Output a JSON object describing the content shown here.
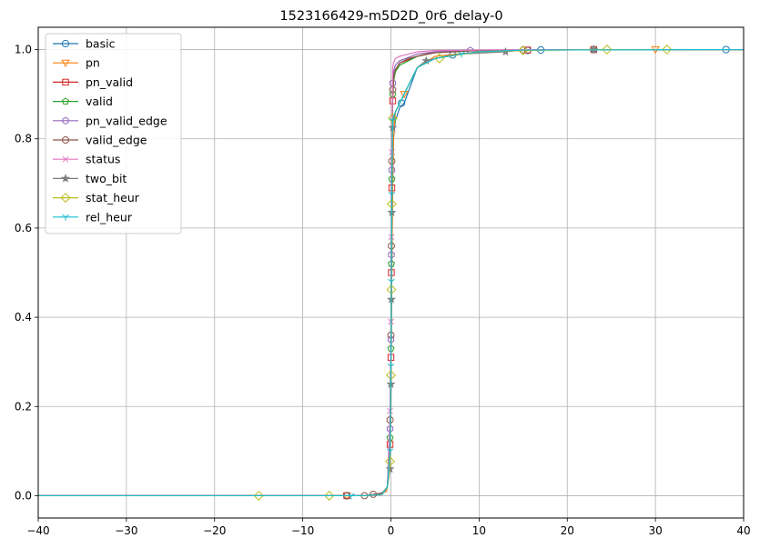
{
  "chart_data": {
    "type": "line",
    "title": "1523166429-m5D2D_0r6_delay-0",
    "xlabel": "",
    "ylabel": "",
    "xlim": [
      -40,
      40
    ],
    "ylim": [
      -0.05,
      1.05
    ],
    "xticks": [
      -40,
      -30,
      -20,
      -10,
      0,
      10,
      20,
      30,
      40
    ],
    "xtick_labels": [
      "−40",
      "−30",
      "−20",
      "−10",
      "0",
      "10",
      "20",
      "30",
      "40"
    ],
    "yticks": [
      0.0,
      0.2,
      0.4,
      0.6,
      0.8,
      1.0
    ],
    "ytick_labels": [
      "0.0",
      "0.2",
      "0.4",
      "0.6",
      "0.8",
      "1.0"
    ],
    "grid": true,
    "legend_position": "upper-left",
    "series": [
      {
        "name": "basic",
        "color": "#1f77b4",
        "marker": "circle",
        "x": [
          -40,
          -5,
          -3,
          -1.5,
          -0.5,
          -0.2,
          0,
          0.1,
          0.2,
          0.3,
          0.5,
          1,
          1.5,
          3,
          5,
          7,
          10,
          15,
          17,
          23,
          38,
          40
        ],
        "y": [
          0,
          0,
          0,
          0.003,
          0.01,
          0.05,
          0.2,
          0.5,
          0.7,
          0.8,
          0.84,
          0.87,
          0.88,
          0.96,
          0.98,
          0.988,
          0.995,
          0.998,
          0.999,
          1.0,
          1.0,
          1.0
        ],
        "markers_x": [
          -5,
          1.2,
          7,
          15.5,
          17,
          23,
          38
        ],
        "markers_y": [
          0,
          0.88,
          0.988,
          0.998,
          0.999,
          1.0,
          1.0
        ]
      },
      {
        "name": "pn",
        "color": "#ff7f0e",
        "marker": "triangle-down",
        "x": [
          -40,
          -5,
          -3,
          -1.5,
          -0.5,
          -0.2,
          0,
          0.1,
          0.2,
          0.3,
          0.5,
          1,
          1.5,
          3,
          5,
          10,
          15,
          30,
          40
        ],
        "y": [
          0,
          0,
          0,
          0.003,
          0.01,
          0.05,
          0.2,
          0.5,
          0.7,
          0.8,
          0.86,
          0.88,
          0.9,
          0.96,
          0.985,
          0.995,
          0.999,
          1.0,
          1.0
        ],
        "markers_x": [
          -5,
          1.5,
          30
        ],
        "markers_y": [
          0,
          0.9,
          1.0
        ]
      },
      {
        "name": "pn_valid",
        "color": "#d62728",
        "marker": "square",
        "x": [
          -40,
          -5,
          -3,
          -1,
          -0.4,
          -0.1,
          0,
          0.05,
          0.1,
          0.2,
          0.3,
          0.5,
          1,
          3,
          5,
          10,
          15,
          23,
          40
        ],
        "y": [
          0,
          0,
          0,
          0.003,
          0.02,
          0.1,
          0.3,
          0.5,
          0.7,
          0.885,
          0.93,
          0.95,
          0.97,
          0.985,
          0.995,
          0.998,
          0.999,
          1.0,
          1.0
        ],
        "markers_x": [
          -5,
          -0.1,
          0,
          0.05,
          0.1,
          0.2,
          15.5,
          23
        ],
        "markers_y": [
          0,
          0.115,
          0.31,
          0.5,
          0.69,
          0.885,
          0.999,
          1.0
        ]
      },
      {
        "name": "valid",
        "color": "#2ca02c",
        "marker": "pentagon",
        "x": [
          -40,
          -5,
          -3,
          -1,
          -0.4,
          -0.1,
          0,
          0.05,
          0.1,
          0.2,
          0.3,
          0.5,
          1,
          2,
          3,
          5,
          10,
          15,
          23,
          40
        ],
        "y": [
          0,
          0,
          0,
          0.003,
          0.02,
          0.13,
          0.33,
          0.52,
          0.71,
          0.9,
          0.93,
          0.95,
          0.965,
          0.975,
          0.985,
          0.993,
          0.998,
          0.999,
          1.0,
          1.0
        ],
        "markers_x": [
          -0.1,
          0,
          0.05,
          0.1,
          0.2
        ],
        "markers_y": [
          0.13,
          0.33,
          0.52,
          0.71,
          0.9
        ]
      },
      {
        "name": "pn_valid_edge",
        "color": "#9467bd",
        "marker": "hexagon",
        "x": [
          -40,
          -5,
          -3,
          -1,
          -0.4,
          -0.1,
          0,
          0.05,
          0.1,
          0.2,
          0.3,
          0.5,
          1,
          3,
          5,
          10,
          15,
          23,
          40
        ],
        "y": [
          0,
          0,
          0,
          0.003,
          0.02,
          0.15,
          0.35,
          0.54,
          0.73,
          0.925,
          0.95,
          0.965,
          0.975,
          0.99,
          0.995,
          0.998,
          0.999,
          1.0,
          1.0
        ],
        "markers_x": [
          -0.1,
          0,
          0.05,
          0.1,
          0.2,
          9
        ],
        "markers_y": [
          0.15,
          0.35,
          0.54,
          0.73,
          0.925,
          0.998
        ]
      },
      {
        "name": "valid_edge",
        "color": "#8c564b",
        "marker": "octagon",
        "x": [
          -40,
          -5,
          -3,
          -2,
          -1,
          -0.4,
          -0.1,
          0,
          0.05,
          0.1,
          0.2,
          0.3,
          0.5,
          1,
          2,
          3,
          5,
          10,
          15,
          23,
          40
        ],
        "y": [
          0,
          0,
          0,
          0.003,
          0.006,
          0.02,
          0.17,
          0.36,
          0.56,
          0.75,
          0.91,
          0.94,
          0.955,
          0.97,
          0.98,
          0.985,
          0.993,
          0.998,
          0.999,
          1.0,
          1.0
        ],
        "markers_x": [
          -5,
          -3,
          -2,
          -0.1,
          0,
          0.05,
          0.1,
          0.2,
          15,
          23
        ],
        "markers_y": [
          0,
          0,
          0.003,
          0.17,
          0.36,
          0.56,
          0.75,
          0.91,
          0.999,
          1.0
        ]
      },
      {
        "name": "status",
        "color": "#e377c2",
        "marker": "x",
        "x": [
          -40,
          -5,
          -3,
          -1,
          -0.4,
          -0.1,
          0,
          0.05,
          0.1,
          0.2,
          0.3,
          0.5,
          1,
          2,
          3,
          5,
          10,
          15,
          40
        ],
        "y": [
          0,
          0,
          0,
          0.003,
          0.02,
          0.19,
          0.39,
          0.58,
          0.77,
          0.96,
          0.97,
          0.98,
          0.985,
          0.99,
          0.995,
          0.998,
          0.999,
          1.0,
          1.0
        ],
        "markers_x": [
          -0.1,
          0,
          0.05,
          0.1
        ],
        "markers_y": [
          0.19,
          0.39,
          0.58,
          0.77
        ]
      },
      {
        "name": "two_bit",
        "color": "#7f7f7f",
        "marker": "star",
        "x": [
          -40,
          -5,
          -3,
          -1,
          -0.4,
          -0.1,
          0,
          0.05,
          0.1,
          0.2,
          0.3,
          0.5,
          1,
          2,
          3,
          4,
          5,
          8,
          13,
          15,
          40
        ],
        "y": [
          0,
          0,
          0,
          0.003,
          0.02,
          0.06,
          0.25,
          0.44,
          0.635,
          0.825,
          0.84,
          0.86,
          0.88,
          0.92,
          0.96,
          0.975,
          0.98,
          0.99,
          0.995,
          0.999,
          1.0
        ],
        "markers_x": [
          -0.1,
          0,
          0.05,
          0.1,
          0.2,
          4,
          13,
          23
        ],
        "markers_y": [
          0.06,
          0.25,
          0.44,
          0.635,
          0.825,
          0.975,
          0.995,
          1.0
        ]
      },
      {
        "name": "stat_heur",
        "color": "#bcbd22",
        "marker": "diamond",
        "x": [
          -40,
          -15,
          -7,
          -5,
          -3,
          -1,
          -0.4,
          -0.1,
          0,
          0.05,
          0.1,
          0.2,
          0.3,
          0.5,
          1,
          1.5,
          3,
          5,
          10,
          15,
          24.5,
          31.3,
          40
        ],
        "y": [
          0,
          0,
          0,
          0,
          0,
          0.003,
          0.02,
          0.077,
          0.27,
          0.462,
          0.654,
          0.846,
          0.85,
          0.86,
          0.88,
          0.9,
          0.96,
          0.98,
          0.995,
          0.998,
          1.0,
          1.0,
          1.0
        ],
        "markers_x": [
          -15,
          -7,
          -0.1,
          0,
          0.05,
          0.1,
          0.2,
          5.5,
          15,
          24.5,
          31.3
        ],
        "markers_y": [
          0,
          0,
          0.077,
          0.27,
          0.462,
          0.654,
          0.846,
          0.98,
          0.998,
          1.0,
          1.0
        ]
      },
      {
        "name": "rel_heur",
        "color": "#17becf",
        "marker": "tri-down",
        "x": [
          -40,
          -5,
          -3,
          -1,
          -0.4,
          -0.1,
          0,
          0.05,
          0.1,
          0.2,
          0.3,
          0.5,
          1,
          2,
          3,
          5,
          8,
          10,
          15,
          40
        ],
        "y": [
          0,
          0,
          0,
          0.003,
          0.02,
          0.1,
          0.29,
          0.48,
          0.675,
          0.84,
          0.85,
          0.86,
          0.88,
          0.92,
          0.96,
          0.98,
          0.99,
          0.995,
          0.999,
          1.0
        ],
        "markers_x": [
          -4.5,
          -0.1,
          0,
          0.05,
          0.1,
          0.2,
          8
        ],
        "markers_y": [
          0,
          0.1,
          0.29,
          0.48,
          0.675,
          0.84,
          0.99
        ]
      }
    ]
  }
}
